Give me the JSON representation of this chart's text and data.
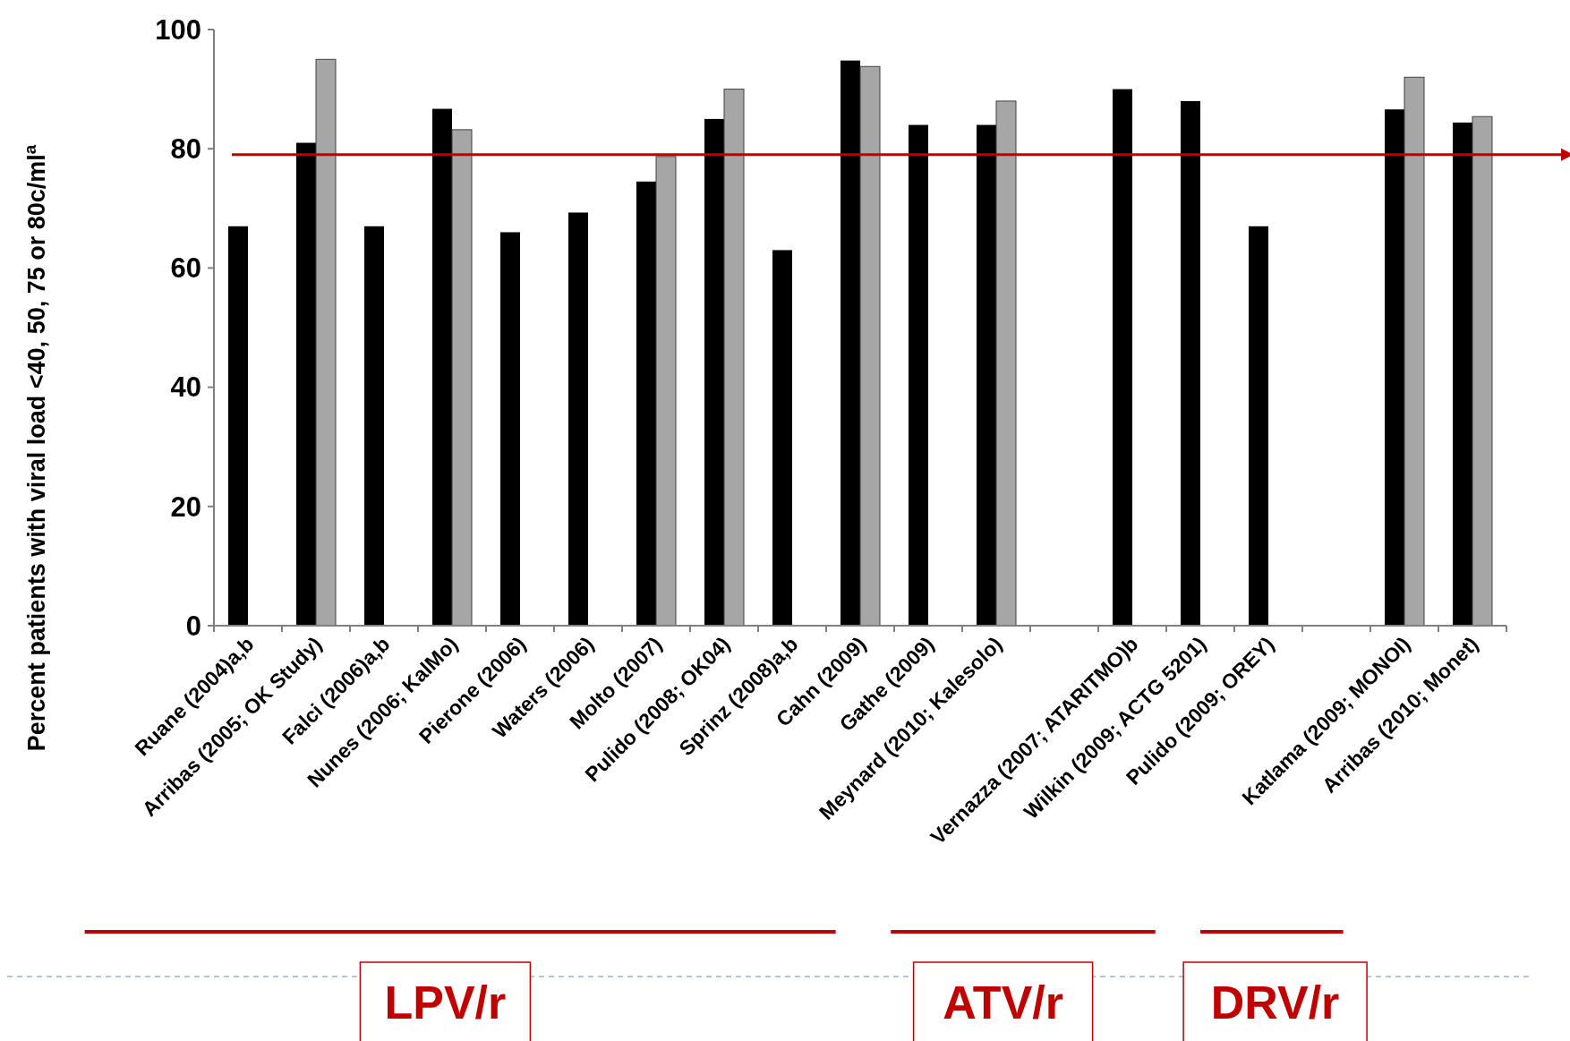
{
  "chart_data": {
    "type": "bar",
    "ylabel": "Percent patients with viral load <40, 50, 75 or 80c/ml$^{a}$",
    "categories": [
      "Ruane (2004)a,b",
      "Arribas (2005; OK Study)",
      "Falci (2006)a,b",
      "Nunes (2006; KalMo)",
      "Pierone (2006)",
      "Waters (2006)",
      "Molto (2007)",
      "Pulido (2008; OK04)",
      "Sprinz (2008)a,b",
      "Cahn (2009)",
      "Gathe (2009)",
      "Meynard (2010; Kalesolo)",
      null,
      "Vernazza (2007; ATARITMO)b",
      "Wilkin (2009; ACTG 5201)",
      "Pulido (2009; OREY)",
      null,
      "Katlama (2009; MONOI)",
      "Arribas (2010; Monet)"
    ],
    "series": [
      {
        "color": "#000000",
        "values": [
          67,
          81,
          67,
          86.7,
          66,
          69.3,
          74.5,
          85,
          63,
          94.8,
          84,
          84,
          null,
          90,
          88,
          67,
          null,
          86.6,
          84.4
        ]
      },
      {
        "color": "#a6a6a6",
        "values": [
          null,
          95,
          null,
          83.2,
          null,
          null,
          78.7,
          90,
          null,
          93.8,
          null,
          88,
          null,
          null,
          null,
          null,
          null,
          92,
          85.4
        ]
      }
    ],
    "ylim": [
      0,
      100
    ],
    "yticks": [
      0,
      20,
      40,
      60,
      80,
      100
    ],
    "grid": false,
    "ref_lines": [
      {
        "axis": "y",
        "value": 79,
        "color": "#c00000"
      }
    ],
    "annotations": [
      "LPV/r",
      "ATV/r",
      "DRV/r"
    ]
  }
}
